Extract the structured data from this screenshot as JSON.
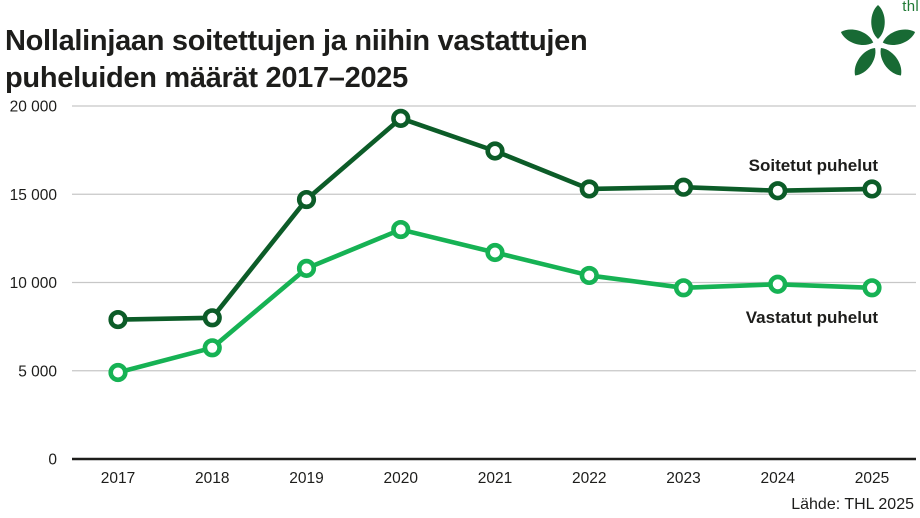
{
  "header": {
    "title_lines": [
      "Nollalinjaan soitettujen ja niihin vastattujen",
      "puheluiden määrät 2017–2025"
    ]
  },
  "logo": {
    "text": "thl",
    "petal_color": "#186a34",
    "text_color": "#217a36"
  },
  "colors": {
    "title": "#1d1d1b",
    "grid": "#c7c7c7",
    "axis": "#1d1d1b",
    "soitetut": "#0c5c28",
    "vastatut": "#16b254",
    "marker_fill": "#ffffff"
  },
  "chart_data": {
    "type": "line",
    "title": "Nollalinjaan soitettujen ja niihin vastattujen puheluiden määrät 2017–2025",
    "categories": [
      "2017",
      "2018",
      "2019",
      "2020",
      "2021",
      "2022",
      "2023",
      "2024",
      "2025"
    ],
    "series": [
      {
        "name": "Soitetut puhelut",
        "color": "#0c5c28",
        "values": [
          7900,
          8000,
          14700,
          19300,
          17450,
          15300,
          15400,
          15200,
          15300
        ]
      },
      {
        "name": "Vastatut puhelut",
        "color": "#16b254",
        "values": [
          4900,
          6300,
          10800,
          13000,
          11700,
          10400,
          9700,
          9900,
          9700
        ]
      }
    ],
    "xlabel": "",
    "ylabel": "",
    "ylim": [
      0,
      20000
    ],
    "yticks": [
      0,
      5000,
      10000,
      15000,
      20000
    ],
    "ytick_labels": [
      "0",
      "5 000",
      "10 000",
      "15 000",
      "20 000"
    ],
    "grid": true,
    "legend_position": "inline-labels-right"
  },
  "footer": {
    "source": "Lähde: THL 2025"
  }
}
